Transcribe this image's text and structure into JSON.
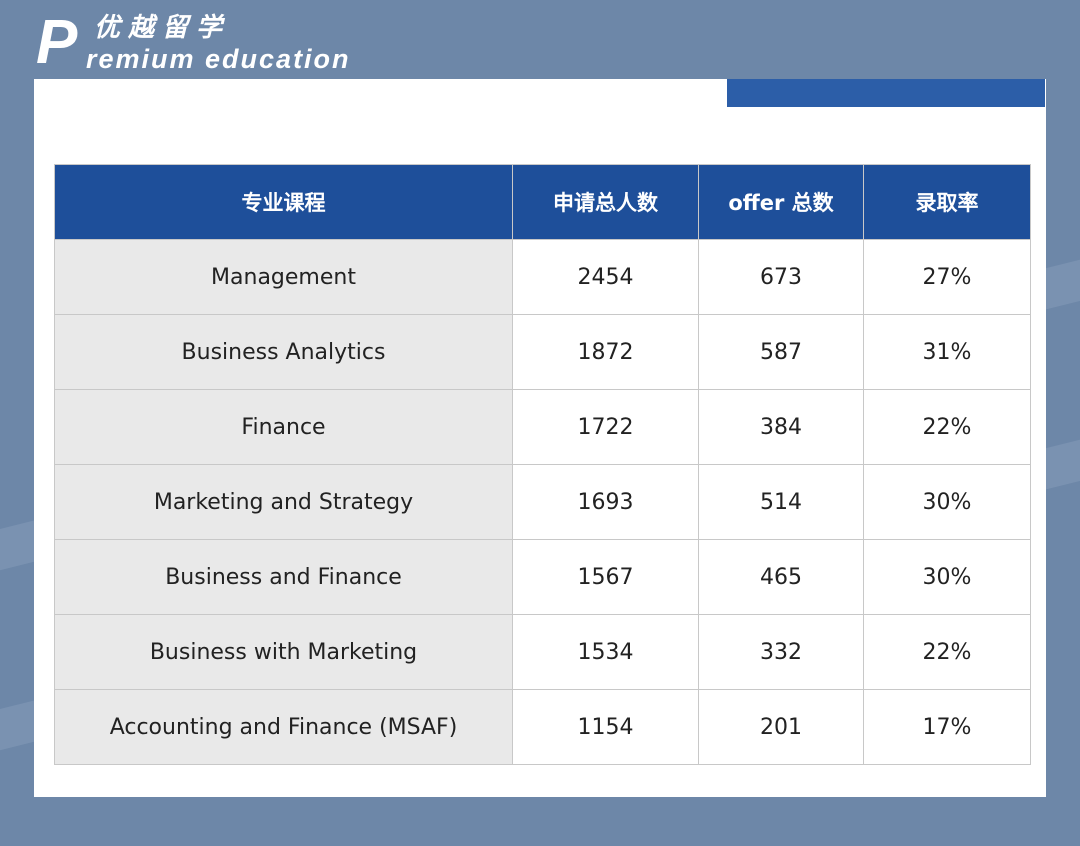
{
  "logo": {
    "letter": "P",
    "chinese": "优越留学",
    "english": "remium education"
  },
  "colors": {
    "background": "#6d87a8",
    "header": "#1e4f9a",
    "accent_bar": "#2c5ea8",
    "first_column": "#e9e9e9"
  },
  "table": {
    "headers": [
      "专业课程",
      "申请总人数",
      "offer 总数",
      "录取率"
    ],
    "rows": [
      [
        "Management",
        "2454",
        "673",
        "27%"
      ],
      [
        "Business Analytics",
        "1872",
        "587",
        "31%"
      ],
      [
        "Finance",
        "1722",
        "384",
        "22%"
      ],
      [
        "Marketing and Strategy",
        "1693",
        "514",
        "30%"
      ],
      [
        "Business and Finance",
        "1567",
        "465",
        "30%"
      ],
      [
        "Business with Marketing",
        "1534",
        "332",
        "22%"
      ],
      [
        "Accounting and Finance (MSAF)",
        "1154",
        "201",
        "17%"
      ]
    ]
  }
}
